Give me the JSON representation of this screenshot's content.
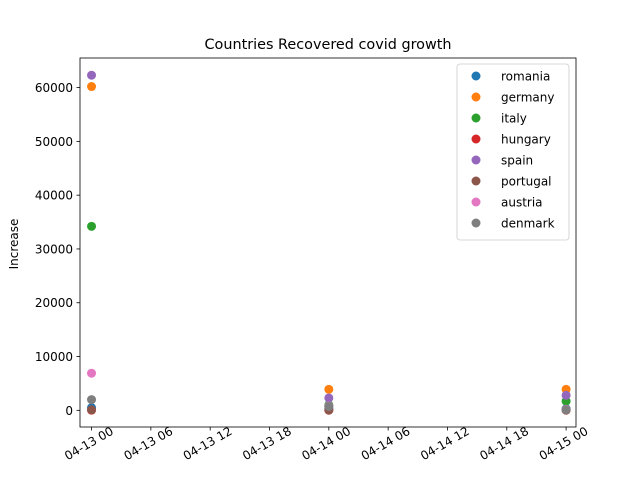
{
  "chart_data": {
    "type": "scatter",
    "title": "Countries Recovered covid growth",
    "xlabel": "",
    "ylabel": "Increase",
    "x_ticks": [
      "04-13 00",
      "04-13 06",
      "04-13 12",
      "04-13 18",
      "04-14 00",
      "04-14 06",
      "04-14 12",
      "04-14 18",
      "04-15 00"
    ],
    "x": [
      "2020-04-13 00:00",
      "2020-04-14 00:00",
      "2020-04-15 00:00"
    ],
    "x_range": [
      "2020-04-12 22:50",
      "2020-04-15 01:00"
    ],
    "y_ticks": [
      0,
      10000,
      20000,
      30000,
      40000,
      50000,
      60000
    ],
    "ylim": [
      -3100,
      65500
    ],
    "legend_position": "upper right",
    "series": [
      {
        "name": "romania",
        "color": "#1f77b4",
        "values": [
          500,
          400,
          300
        ]
      },
      {
        "name": "germany",
        "color": "#ff7f0e",
        "values": [
          60200,
          3900,
          3900
        ]
      },
      {
        "name": "italy",
        "color": "#2ca02c",
        "values": [
          34200,
          1000,
          1700
        ]
      },
      {
        "name": "hungary",
        "color": "#d62728",
        "values": [
          30,
          20,
          20
        ]
      },
      {
        "name": "spain",
        "color": "#9467bd",
        "values": [
          62300,
          2300,
          2800
        ]
      },
      {
        "name": "portugal",
        "color": "#8c564b",
        "values": [
          100,
          50,
          50
        ]
      },
      {
        "name": "austria",
        "color": "#e377c2",
        "values": [
          6900,
          800,
          200
        ]
      },
      {
        "name": "denmark",
        "color": "#7f7f7f",
        "values": [
          2000,
          700,
          100
        ]
      }
    ]
  }
}
